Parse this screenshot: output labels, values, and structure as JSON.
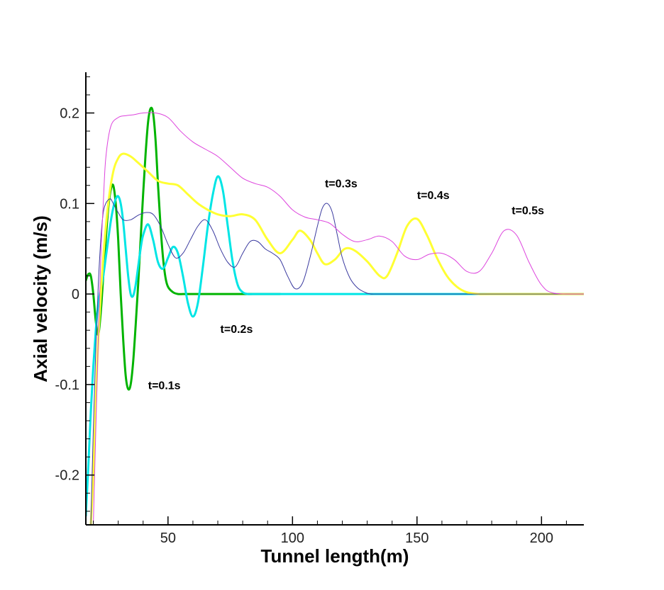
{
  "chart_data": {
    "type": "line",
    "title": "",
    "xlabel": "Tunnel length(m)",
    "ylabel": "Axial velocity (m/s)",
    "xlim": [
      17,
      217
    ],
    "ylim": [
      -0.255,
      0.245
    ],
    "grid": false,
    "x_ticks": [
      50,
      100,
      150,
      200
    ],
    "x_tick_labels": [
      "50",
      "100",
      "150",
      "200"
    ],
    "y_ticks": [
      -0.2,
      -0.1,
      0,
      0.1,
      0.2
    ],
    "y_tick_labels": [
      "-0.2",
      "-0.1",
      "0",
      "0.1",
      "0.2"
    ],
    "annotations": [
      {
        "text": "t=0.1s",
        "x": 42,
        "y": -0.105
      },
      {
        "text": "t=0.2s",
        "x": 71,
        "y": -0.043
      },
      {
        "text": "t=0.3s",
        "x": 113,
        "y": 0.118
      },
      {
        "text": "t=0.4s",
        "x": 150,
        "y": 0.105
      },
      {
        "text": "t=0.5s",
        "x": 188,
        "y": 0.088
      }
    ],
    "series": [
      {
        "color": "#00b400",
        "stroke_width": 3,
        "x": [
          17,
          18,
          19,
          20,
          21,
          22,
          23,
          24,
          25,
          26,
          27,
          28,
          29,
          30,
          31,
          32,
          33,
          34,
          35,
          36,
          37,
          38,
          39,
          40,
          41,
          42,
          43,
          44,
          45,
          46,
          47,
          48,
          49,
          50,
          52,
          54,
          56,
          58,
          60,
          70,
          80,
          95
        ],
        "y": [
          0.015,
          0.022,
          0.02,
          0.0,
          -0.03,
          -0.045,
          -0.02,
          0.02,
          0.06,
          0.095,
          0.115,
          0.12,
          0.1,
          0.06,
          0.0,
          -0.05,
          -0.09,
          -0.105,
          -0.1,
          -0.075,
          -0.035,
          0.01,
          0.06,
          0.11,
          0.155,
          0.19,
          0.205,
          0.2,
          0.17,
          0.12,
          0.075,
          0.04,
          0.018,
          0.008,
          0.002,
          0.0,
          0.0,
          0.0,
          0.0,
          0.0,
          0.0,
          0.0
        ]
      },
      {
        "color": "#00e5e5",
        "stroke_width": 3,
        "x": [
          17,
          18,
          19,
          20,
          21,
          22,
          23,
          24,
          25,
          26,
          27,
          28,
          29,
          30,
          31,
          32,
          33,
          34,
          35,
          36,
          37,
          38,
          39,
          40,
          42,
          44,
          46,
          48,
          50,
          52,
          54,
          56,
          58,
          60,
          62,
          64,
          66,
          68,
          70,
          72,
          74,
          76,
          78,
          80,
          82,
          84,
          86,
          88,
          90,
          95,
          100,
          110,
          217
        ],
        "y": [
          -0.245,
          -0.19,
          -0.13,
          -0.08,
          -0.04,
          -0.01,
          0.005,
          0.02,
          0.04,
          0.06,
          0.08,
          0.095,
          0.105,
          0.108,
          0.1,
          0.08,
          0.05,
          0.02,
          0.0,
          -0.002,
          0.01,
          0.03,
          0.05,
          0.065,
          0.077,
          0.06,
          0.035,
          0.028,
          0.04,
          0.052,
          0.045,
          0.02,
          -0.01,
          -0.025,
          -0.01,
          0.03,
          0.075,
          0.11,
          0.13,
          0.115,
          0.075,
          0.035,
          0.01,
          0.002,
          0.0,
          0.0,
          0.0,
          0.0,
          0.0,
          0.0,
          0.0,
          0.0,
          0.0
        ]
      },
      {
        "color": "#ffff33",
        "stroke_width": 3,
        "x": [
          19,
          20,
          21,
          22,
          24,
          26,
          28,
          30,
          32,
          35,
          38,
          42,
          46,
          50,
          54,
          58,
          62,
          66,
          70,
          75,
          80,
          85,
          90,
          95,
          100,
          103,
          107,
          110,
          113,
          117,
          121,
          125,
          130,
          135,
          138,
          142,
          146,
          150,
          154,
          158,
          162,
          166,
          170,
          175,
          180,
          217
        ],
        "y": [
          -0.255,
          -0.2,
          -0.12,
          -0.05,
          0.04,
          0.1,
          0.135,
          0.15,
          0.155,
          0.152,
          0.145,
          0.135,
          0.125,
          0.122,
          0.12,
          0.11,
          0.1,
          0.093,
          0.088,
          0.086,
          0.088,
          0.082,
          0.06,
          0.045,
          0.06,
          0.07,
          0.06,
          0.045,
          0.033,
          0.038,
          0.05,
          0.048,
          0.036,
          0.02,
          0.02,
          0.045,
          0.075,
          0.083,
          0.065,
          0.04,
          0.02,
          0.008,
          0.002,
          0.0,
          0.0,
          0.0
        ]
      },
      {
        "color": "#3a3a9f",
        "stroke_width": 1,
        "x": [
          19,
          20,
          21,
          22,
          23,
          24,
          25,
          26,
          27,
          28,
          30,
          32,
          35,
          38,
          41,
          44,
          47,
          50,
          53,
          56,
          59,
          62,
          65,
          68,
          71,
          74,
          77,
          80,
          83,
          86,
          89,
          92,
          95,
          98,
          101,
          104,
          107,
          110,
          112,
          114,
          116,
          118,
          120,
          123,
          126,
          129,
          132,
          140,
          217
        ],
        "y": [
          -0.255,
          -0.15,
          -0.06,
          0.01,
          0.06,
          0.09,
          0.1,
          0.104,
          0.105,
          0.1,
          0.09,
          0.082,
          0.082,
          0.087,
          0.09,
          0.088,
          0.075,
          0.055,
          0.04,
          0.045,
          0.06,
          0.075,
          0.082,
          0.07,
          0.05,
          0.035,
          0.03,
          0.045,
          0.058,
          0.058,
          0.05,
          0.045,
          0.038,
          0.02,
          0.006,
          0.012,
          0.04,
          0.075,
          0.095,
          0.1,
          0.09,
          0.065,
          0.04,
          0.018,
          0.007,
          0.002,
          0.0,
          0.0,
          0.0
        ]
      },
      {
        "color": "#dd44dd",
        "stroke_width": 1,
        "x": [
          20,
          21,
          22,
          23,
          24,
          25,
          27,
          30,
          33,
          36,
          40,
          45,
          50,
          55,
          60,
          65,
          70,
          75,
          80,
          85,
          90,
          95,
          100,
          105,
          110,
          115,
          120,
          125,
          130,
          135,
          140,
          145,
          150,
          155,
          160,
          165,
          170,
          175,
          180,
          185,
          190,
          195,
          200,
          205,
          217
        ],
        "y": [
          -0.255,
          -0.15,
          -0.05,
          0.04,
          0.1,
          0.15,
          0.185,
          0.195,
          0.197,
          0.198,
          0.2,
          0.2,
          0.195,
          0.18,
          0.168,
          0.16,
          0.152,
          0.14,
          0.128,
          0.122,
          0.118,
          0.108,
          0.093,
          0.085,
          0.082,
          0.078,
          0.066,
          0.058,
          0.06,
          0.064,
          0.058,
          0.042,
          0.038,
          0.044,
          0.045,
          0.038,
          0.025,
          0.025,
          0.045,
          0.07,
          0.065,
          0.035,
          0.01,
          0.001,
          0.0
        ]
      }
    ]
  }
}
